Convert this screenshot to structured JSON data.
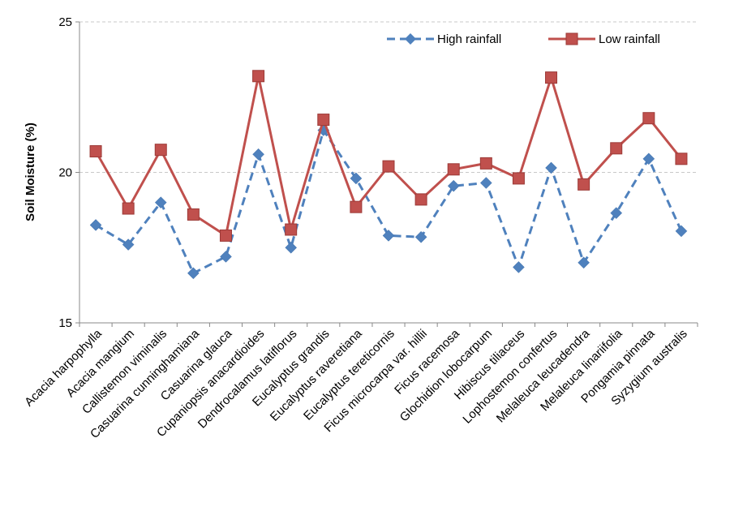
{
  "chart_data": {
    "type": "line",
    "title": "",
    "xlabel": "",
    "ylabel": "Soil Moisture (%)",
    "ylim": [
      15,
      25
    ],
    "yticks": [
      15,
      20,
      25
    ],
    "grid": "horizontal dashed",
    "legend_position": "top-right",
    "categories": [
      "Acacia harpophylla",
      "Acacia mangium",
      "Callistemon viminalis",
      "Casuarina cunninghamiana",
      "Casuarina glauca",
      "Cupaniopsis anacardioides",
      "Dendrocalamus latiflorus",
      "Eucalyptus grandis",
      "Eucalyptus raveretiana",
      "Eucalyptus tereticornis",
      "Ficus microcarpa var. hillii",
      "Ficus racemosa",
      "Glochidion lobocarpum",
      "Hibiscus tiliaceus",
      "Lophostemon confertus",
      "Melaleuca leucadendra",
      "Melaleuca linariifolia",
      "Pongamia pinnata",
      "Syzygium australis"
    ],
    "series": [
      {
        "name": "High rainfall",
        "color": "#4f81bd",
        "marker": "diamond",
        "line_style": "dashed",
        "values": [
          18.25,
          17.6,
          19.0,
          16.65,
          17.2,
          20.6,
          17.5,
          21.4,
          19.8,
          17.9,
          17.85,
          19.55,
          19.65,
          16.85,
          20.15,
          17.0,
          18.65,
          20.45,
          18.05
        ]
      },
      {
        "name": "Low rainfall",
        "color": "#c0504d",
        "marker": "square",
        "line_style": "solid",
        "values": [
          20.7,
          18.8,
          20.75,
          18.6,
          17.9,
          23.2,
          18.1,
          21.75,
          18.85,
          20.2,
          19.1,
          20.1,
          20.3,
          19.8,
          23.15,
          19.6,
          20.8,
          21.8,
          20.45
        ]
      }
    ]
  }
}
